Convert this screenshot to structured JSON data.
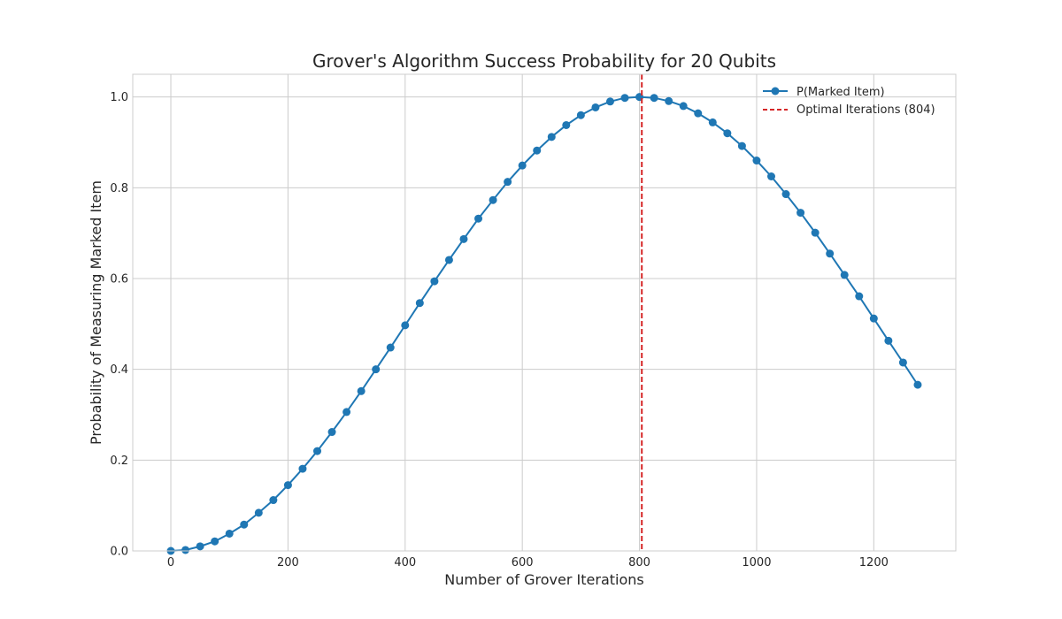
{
  "chart_data": {
    "type": "line",
    "title": "Grover's Algorithm Success Probability for 20 Qubits",
    "xlabel": "Number of Grover Iterations",
    "ylabel": "Probability of Measuring Marked Item",
    "xlim": [
      -65,
      1340
    ],
    "ylim": [
      0,
      1.05
    ],
    "xticks": [
      0,
      200,
      400,
      600,
      800,
      1000,
      1200
    ],
    "yticks": [
      0.0,
      0.2,
      0.4,
      0.6,
      0.8,
      1.0
    ],
    "grid": true,
    "legend_position": "top-right",
    "series": [
      {
        "name": "P(Marked Item)",
        "color": "#1f77b4",
        "marker": "circle",
        "x": [
          0,
          25,
          50,
          75,
          100,
          125,
          150,
          175,
          200,
          225,
          250,
          275,
          300,
          325,
          350,
          375,
          400,
          425,
          450,
          475,
          500,
          525,
          550,
          575,
          600,
          625,
          650,
          675,
          700,
          725,
          750,
          775,
          800,
          825,
          850,
          875,
          900,
          925,
          950,
          975,
          1000,
          1025,
          1050,
          1075,
          1100,
          1125,
          1150,
          1175,
          1200,
          1225,
          1250,
          1275
        ],
        "y": [
          0.0,
          0.002,
          0.01,
          0.021,
          0.038,
          0.058,
          0.084,
          0.112,
          0.145,
          0.181,
          0.22,
          0.262,
          0.306,
          0.352,
          0.4,
          0.448,
          0.497,
          0.546,
          0.594,
          0.641,
          0.687,
          0.732,
          0.773,
          0.813,
          0.849,
          0.882,
          0.912,
          0.938,
          0.96,
          0.977,
          0.99,
          0.998,
          1.0,
          0.998,
          0.991,
          0.98,
          0.964,
          0.944,
          0.92,
          0.892,
          0.86,
          0.825,
          0.786,
          0.745,
          0.701,
          0.655,
          0.608,
          0.561,
          0.512,
          0.463,
          0.415,
          0.366
        ]
      }
    ],
    "reference_lines": [
      {
        "name": "Optimal Iterations (804)",
        "x": 804,
        "color": "#d62728",
        "style": "dashed"
      }
    ]
  }
}
